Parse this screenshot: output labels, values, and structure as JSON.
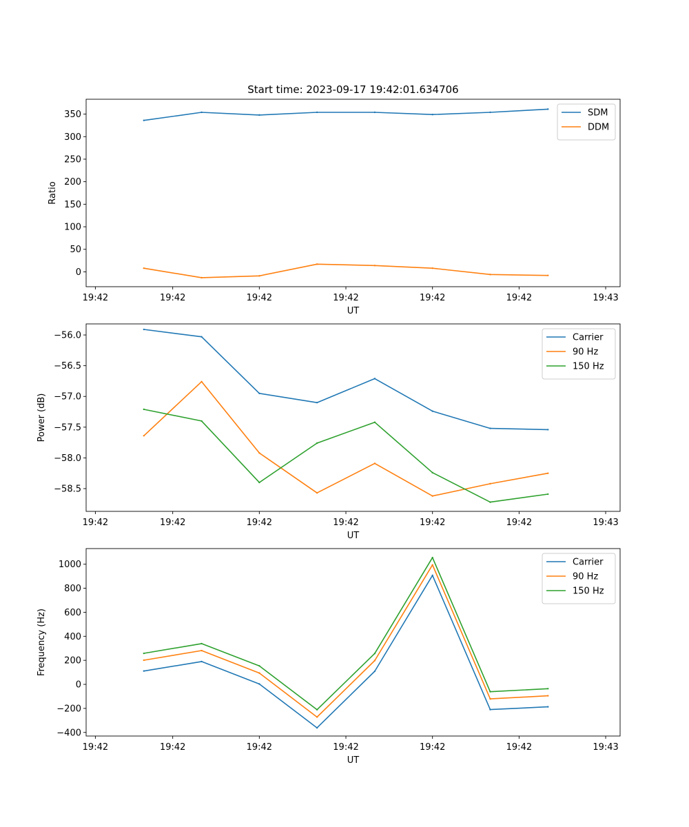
{
  "figure": {
    "title": "Start time: 2023-09-17 19:42:01.634706"
  },
  "colors": {
    "blue": "#1f77b4",
    "orange": "#ff7f0e",
    "green": "#2ca02c"
  },
  "chart_data": [
    {
      "type": "line",
      "title": "Start time: 2023-09-17 19:42:01.634706",
      "xlabel": "UT",
      "ylabel": "Ratio",
      "x_tick_labels": [
        "19:42",
        "19:42",
        "19:42",
        "19:42",
        "19:42",
        "19:42",
        "19:43"
      ],
      "x_index": [
        1,
        2,
        3,
        4,
        5,
        6,
        7,
        8
      ],
      "xlim": [
        0,
        9.25
      ],
      "ylim": [
        -33,
        383
      ],
      "y_ticks": [
        0,
        50,
        100,
        150,
        200,
        250,
        300,
        350
      ],
      "y_tick_labels": [
        "0",
        "50",
        "100",
        "150",
        "200",
        "250",
        "300",
        "350"
      ],
      "legend": "top-right",
      "series": [
        {
          "name": "SDM",
          "color": "#1f77b4",
          "values": [
            336,
            354,
            348,
            354,
            354,
            349,
            354,
            361
          ]
        },
        {
          "name": "DDM",
          "color": "#ff7f0e",
          "values": [
            8,
            -13,
            -9,
            17,
            14,
            8,
            -6,
            -8
          ]
        }
      ]
    },
    {
      "type": "line",
      "title": "",
      "xlabel": "UT",
      "ylabel": "Power (dB)",
      "x_tick_labels": [
        "19:42",
        "19:42",
        "19:42",
        "19:42",
        "19:42",
        "19:42",
        "19:43"
      ],
      "x_index": [
        1,
        2,
        3,
        4,
        5,
        6,
        7,
        8
      ],
      "xlim": [
        0,
        9.25
      ],
      "ylim": [
        -58.87,
        -55.82
      ],
      "y_ticks": [
        -58.5,
        -58.0,
        -57.5,
        -57.0,
        -56.5,
        -56.0
      ],
      "y_tick_labels": [
        "−58.5",
        "−58.0",
        "−57.5",
        "−57.0",
        "−56.5",
        "−56.0"
      ],
      "legend": "top-right",
      "series": [
        {
          "name": "Carrier",
          "color": "#1f77b4",
          "values": [
            -55.91,
            -56.03,
            -56.95,
            -57.1,
            -56.71,
            -57.24,
            -57.52,
            -57.54
          ]
        },
        {
          "name": "90 Hz",
          "color": "#ff7f0e",
          "values": [
            -57.64,
            -56.76,
            -57.92,
            -58.57,
            -58.09,
            -58.62,
            -58.42,
            -58.25
          ]
        },
        {
          "name": "150 Hz",
          "color": "#2ca02c",
          "values": [
            -57.21,
            -57.4,
            -58.4,
            -57.76,
            -57.42,
            -58.24,
            -58.72,
            -58.59
          ]
        }
      ]
    },
    {
      "type": "line",
      "title": "",
      "xlabel": "UT",
      "ylabel": "Frequency (Hz)",
      "x_tick_labels": [
        "19:42",
        "19:42",
        "19:42",
        "19:42",
        "19:42",
        "19:42",
        "19:43"
      ],
      "x_index": [
        1,
        2,
        3,
        4,
        5,
        6,
        7,
        8
      ],
      "xlim": [
        0,
        9.25
      ],
      "ylim": [
        -430,
        1130
      ],
      "y_ticks": [
        -400,
        -200,
        0,
        200,
        400,
        600,
        800,
        1000
      ],
      "y_tick_labels": [
        "−400",
        "−200",
        "0",
        "200",
        "400",
        "600",
        "800",
        "1000"
      ],
      "legend": "top-right",
      "series": [
        {
          "name": "Carrier",
          "color": "#1f77b4",
          "values": [
            111,
            190,
            3,
            -362,
            109,
            907,
            -210,
            -187
          ]
        },
        {
          "name": "90 Hz",
          "color": "#ff7f0e",
          "values": [
            201,
            281,
            94,
            -272,
            198,
            994,
            -121,
            -95
          ]
        },
        {
          "name": "150 Hz",
          "color": "#2ca02c",
          "values": [
            258,
            339,
            154,
            -211,
            257,
            1055,
            -61,
            -36
          ]
        }
      ]
    }
  ]
}
